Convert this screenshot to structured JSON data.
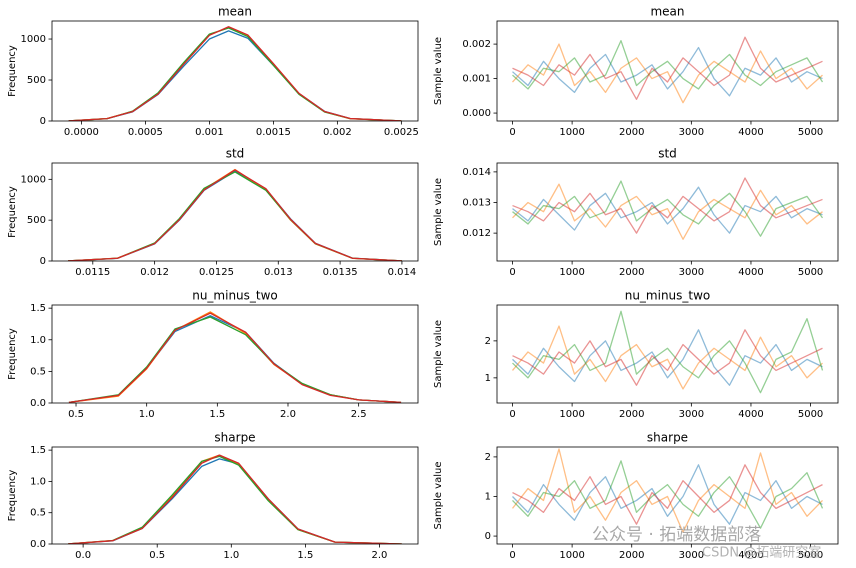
{
  "chart_data": [
    {
      "type": "line",
      "title": "mean",
      "ylabel": "Frequency",
      "opacity": 1,
      "x": [
        -0.0001,
        0.0002,
        0.0004,
        0.0006,
        0.0008,
        0.001,
        0.00115,
        0.0013,
        0.0015,
        0.0017,
        0.0019,
        0.0021,
        0.0025
      ],
      "series": [
        {
          "color": "#1f77b4",
          "values": [
            2,
            29,
            112,
            325,
            670,
            1000,
            1100,
            1010,
            680,
            335,
            118,
            30,
            1
          ]
        },
        {
          "color": "#ff7f0e",
          "values": [
            2,
            30,
            118,
            335,
            700,
            1050,
            1140,
            1045,
            690,
            330,
            112,
            28,
            1
          ]
        },
        {
          "color": "#2ca02c",
          "values": [
            2,
            28,
            120,
            345,
            715,
            1060,
            1135,
            1030,
            680,
            325,
            110,
            29,
            1
          ]
        },
        {
          "color": "#d62728",
          "values": [
            2,
            29,
            115,
            330,
            695,
            1045,
            1150,
            1050,
            700,
            338,
            116,
            30,
            1
          ]
        }
      ],
      "xlim": [
        -0.00023,
        0.00263
      ],
      "ylim": [
        0,
        1220
      ],
      "xticks": [
        {
          "value": 0,
          "label": "0.0000"
        },
        0.0005,
        0.001,
        0.0015,
        0.002,
        0.0025
      ],
      "yticks": [
        0,
        500,
        1000
      ]
    },
    {
      "type": "line",
      "title": "mean",
      "ylabel": "Sample value",
      "opacity": 0.5,
      "x": [
        0,
        260,
        520,
        780,
        1040,
        1300,
        1560,
        1820,
        2080,
        2340,
        2600,
        2860,
        3120,
        3380,
        3640,
        3900,
        4160,
        4420,
        4680,
        4940,
        5200
      ],
      "series": [
        {
          "color": "#1f77b4",
          "values": [
            0.0012,
            0.0008,
            0.0015,
            0.001,
            0.0006,
            0.0013,
            0.0017,
            0.0009,
            0.0011,
            0.0014,
            0.0007,
            0.0012,
            0.0019,
            0.001,
            0.0005,
            0.0013,
            0.0011,
            0.0016,
            0.0009,
            0.0012,
            0.001
          ]
        },
        {
          "color": "#ff7f0e",
          "values": [
            0.0009,
            0.0014,
            0.0011,
            0.002,
            0.0008,
            0.0012,
            0.0006,
            0.0013,
            0.0016,
            0.001,
            0.0012,
            0.0003,
            0.0011,
            0.0015,
            0.0012,
            0.0009,
            0.0018,
            0.001,
            0.0013,
            0.0007,
            0.0011
          ]
        },
        {
          "color": "#2ca02c",
          "values": [
            0.0011,
            0.0007,
            0.0013,
            0.0012,
            0.0016,
            0.0009,
            0.0011,
            0.0021,
            0.0008,
            0.0012,
            0.0015,
            0.001,
            0.0007,
            0.0013,
            0.0017,
            0.0011,
            0.0008,
            0.0012,
            0.0014,
            0.0016,
            0.0009
          ]
        },
        {
          "color": "#d62728",
          "values": [
            0.0013,
            0.0011,
            0.0008,
            0.0014,
            0.0011,
            0.0017,
            0.001,
            0.0012,
            0.0004,
            0.0013,
            0.0009,
            0.0016,
            0.0012,
            0.0008,
            0.0011,
            0.0022,
            0.0013,
            0.0009,
            0.0011,
            0.0013,
            0.0015
          ]
        }
      ],
      "xlim": [
        -260,
        5460
      ],
      "ylim": [
        -0.00023,
        0.00267
      ],
      "xticks": [
        0,
        1000,
        2000,
        3000,
        4000,
        5000
      ],
      "yticks": [
        {
          "value": 0,
          "label": "0.000"
        },
        {
          "value": 0.001,
          "label": "0.001"
        },
        {
          "value": 0.002,
          "label": "0.002"
        }
      ]
    },
    {
      "type": "line",
      "title": "std",
      "ylabel": "Frequency",
      "opacity": 1,
      "x": [
        0.0113,
        0.0117,
        0.012,
        0.0122,
        0.0124,
        0.01265,
        0.0129,
        0.0131,
        0.0133,
        0.0136,
        0.014
      ],
      "series": [
        {
          "color": "#1f77b4",
          "values": [
            1,
            33,
            210,
            500,
            865,
            1100,
            880,
            515,
            218,
            35,
            1
          ]
        },
        {
          "color": "#ff7f0e",
          "values": [
            1,
            35,
            218,
            515,
            880,
            1120,
            870,
            500,
            210,
            33,
            1
          ]
        },
        {
          "color": "#2ca02c",
          "values": [
            1,
            34,
            220,
            520,
            890,
            1090,
            865,
            505,
            212,
            34,
            1
          ]
        },
        {
          "color": "#d62728",
          "values": [
            1,
            34,
            212,
            505,
            870,
            1115,
            885,
            510,
            216,
            34,
            1
          ]
        }
      ],
      "xlim": [
        0.01117,
        0.01413
      ],
      "ylim": [
        0,
        1200
      ],
      "xticks": [
        0.0115,
        0.012,
        0.0125,
        0.013,
        0.0135,
        0.014
      ],
      "yticks": [
        0,
        500,
        1000
      ]
    },
    {
      "type": "line",
      "title": "std",
      "ylabel": "Sample value",
      "opacity": 0.5,
      "x": [
        0,
        260,
        520,
        780,
        1040,
        1300,
        1560,
        1820,
        2080,
        2340,
        2600,
        2860,
        3120,
        3380,
        3640,
        3900,
        4160,
        4420,
        4680,
        4940,
        5200
      ],
      "series": [
        {
          "color": "#1f77b4",
          "values": [
            0.0128,
            0.0124,
            0.0131,
            0.0126,
            0.0121,
            0.0129,
            0.0133,
            0.0125,
            0.0127,
            0.013,
            0.0123,
            0.0128,
            0.0135,
            0.0126,
            0.012,
            0.0129,
            0.0127,
            0.0132,
            0.0125,
            0.0128,
            0.0126
          ]
        },
        {
          "color": "#ff7f0e",
          "values": [
            0.0125,
            0.013,
            0.0127,
            0.0136,
            0.0124,
            0.0128,
            0.0122,
            0.0129,
            0.0132,
            0.0126,
            0.0128,
            0.0118,
            0.0127,
            0.0131,
            0.0128,
            0.0125,
            0.0134,
            0.0126,
            0.0129,
            0.0123,
            0.0127
          ]
        },
        {
          "color": "#2ca02c",
          "values": [
            0.0127,
            0.0123,
            0.0129,
            0.0128,
            0.0132,
            0.0125,
            0.0127,
            0.0137,
            0.0124,
            0.0128,
            0.0131,
            0.0126,
            0.0123,
            0.0129,
            0.0133,
            0.0127,
            0.0119,
            0.0128,
            0.013,
            0.0132,
            0.0125
          ]
        },
        {
          "color": "#d62728",
          "values": [
            0.0129,
            0.0127,
            0.0124,
            0.013,
            0.0127,
            0.0133,
            0.0126,
            0.0128,
            0.012,
            0.0129,
            0.0125,
            0.0132,
            0.0128,
            0.0124,
            0.0127,
            0.0138,
            0.0129,
            0.0125,
            0.0127,
            0.0129,
            0.0131
          ]
        }
      ],
      "xlim": [
        -260,
        5460
      ],
      "ylim": [
        0.01109,
        0.01429
      ],
      "xticks": [
        0,
        1000,
        2000,
        3000,
        4000,
        5000
      ],
      "yticks": [
        0.012,
        0.013,
        0.014
      ]
    },
    {
      "type": "line",
      "title": "nu_minus_two",
      "ylabel": "Frequency",
      "opacity": 1,
      "x": [
        0.45,
        0.8,
        1.0,
        1.2,
        1.45,
        1.7,
        1.9,
        2.1,
        2.3,
        2.5,
        2.8
      ],
      "series": [
        {
          "color": "#1f77b4",
          "values": [
            0.01,
            0.12,
            0.55,
            1.13,
            1.38,
            1.12,
            0.63,
            0.3,
            0.13,
            0.05,
            0.01
          ]
        },
        {
          "color": "#ff7f0e",
          "values": [
            0.01,
            0.11,
            0.54,
            1.15,
            1.44,
            1.1,
            0.61,
            0.3,
            0.13,
            0.05,
            0.01
          ]
        },
        {
          "color": "#2ca02c",
          "values": [
            0.01,
            0.13,
            0.57,
            1.17,
            1.36,
            1.08,
            0.62,
            0.31,
            0.13,
            0.05,
            0.01
          ]
        },
        {
          "color": "#d62728",
          "values": [
            0.01,
            0.12,
            0.55,
            1.15,
            1.42,
            1.12,
            0.62,
            0.29,
            0.12,
            0.05,
            0.01
          ]
        }
      ],
      "xlim": [
        0.33,
        2.92
      ],
      "ylim": [
        0,
        1.55
      ],
      "xticks": [
        0.5,
        {
          "value": 1,
          "label": "1.0"
        },
        1.5,
        {
          "value": 2,
          "label": "2.0"
        },
        2.5
      ],
      "yticks": [
        {
          "value": 0,
          "label": "0.0"
        },
        0.5,
        {
          "value": 1,
          "label": "1.0"
        },
        1.5
      ]
    },
    {
      "type": "line",
      "title": "nu_minus_two",
      "ylabel": "Sample value",
      "opacity": 0.5,
      "x": [
        0,
        260,
        520,
        780,
        1040,
        1300,
        1560,
        1820,
        2080,
        2340,
        2600,
        2860,
        3120,
        3380,
        3640,
        3900,
        4160,
        4420,
        4680,
        4940,
        5200
      ],
      "series": [
        {
          "color": "#1f77b4",
          "values": [
            1.5,
            1.1,
            1.8,
            1.3,
            0.9,
            1.6,
            2.0,
            1.2,
            1.4,
            1.7,
            1.0,
            1.5,
            2.3,
            1.3,
            0.8,
            1.6,
            1.4,
            1.9,
            1.2,
            1.5,
            1.3
          ]
        },
        {
          "color": "#ff7f0e",
          "values": [
            1.2,
            1.7,
            1.4,
            2.4,
            1.1,
            1.5,
            0.9,
            1.6,
            1.9,
            1.3,
            1.5,
            0.7,
            1.4,
            1.8,
            1.5,
            1.2,
            2.1,
            1.3,
            1.6,
            1.0,
            1.4
          ]
        },
        {
          "color": "#2ca02c",
          "values": [
            1.4,
            1.0,
            1.6,
            1.5,
            1.9,
            1.2,
            1.4,
            2.8,
            1.1,
            1.5,
            1.8,
            1.3,
            1.0,
            1.6,
            2.0,
            1.4,
            0.6,
            1.5,
            1.7,
            2.6,
            1.2
          ]
        },
        {
          "color": "#d62728",
          "values": [
            1.6,
            1.4,
            1.1,
            1.7,
            1.4,
            2.0,
            1.3,
            1.5,
            0.8,
            1.6,
            1.2,
            1.9,
            1.5,
            1.1,
            1.4,
            2.3,
            1.6,
            1.2,
            1.4,
            1.6,
            1.8
          ]
        }
      ],
      "xlim": [
        -260,
        5460
      ],
      "ylim": [
        0.32,
        2.97
      ],
      "xticks": [
        0,
        1000,
        2000,
        3000,
        4000,
        5000
      ],
      "yticks": [
        1,
        2
      ]
    },
    {
      "type": "line",
      "title": "sharpe",
      "ylabel": "Frequency",
      "opacity": 1,
      "x": [
        -0.1,
        0.2,
        0.4,
        0.6,
        0.8,
        0.92,
        1.05,
        1.25,
        1.45,
        1.7,
        2.15
      ],
      "series": [
        {
          "color": "#1f77b4",
          "values": [
            0.002,
            0.05,
            0.25,
            0.72,
            1.24,
            1.36,
            1.28,
            0.72,
            0.24,
            0.03,
            0
          ]
        },
        {
          "color": "#ff7f0e",
          "values": [
            0.002,
            0.055,
            0.26,
            0.76,
            1.32,
            1.42,
            1.27,
            0.7,
            0.23,
            0.03,
            0
          ]
        },
        {
          "color": "#2ca02c",
          "values": [
            0.002,
            0.056,
            0.27,
            0.78,
            1.32,
            1.4,
            1.26,
            0.69,
            0.23,
            0.03,
            0
          ]
        },
        {
          "color": "#d62728",
          "values": [
            0.002,
            0.053,
            0.25,
            0.74,
            1.29,
            1.42,
            1.29,
            0.72,
            0.24,
            0.03,
            0
          ]
        }
      ],
      "xlim": [
        -0.21,
        2.26
      ],
      "ylim": [
        0,
        1.55
      ],
      "xticks": [
        {
          "value": 0,
          "label": "0.0"
        },
        0.5,
        {
          "value": 1,
          "label": "1.0"
        },
        1.5,
        {
          "value": 2,
          "label": "2.0"
        }
      ],
      "yticks": [
        {
          "value": 0,
          "label": "0.0"
        },
        0.5,
        {
          "value": 1,
          "label": "1.0"
        },
        1.5
      ]
    },
    {
      "type": "line",
      "title": "sharpe",
      "ylabel": "Sample value",
      "opacity": 0.5,
      "x": [
        0,
        260,
        520,
        780,
        1040,
        1300,
        1560,
        1820,
        2080,
        2340,
        2600,
        2860,
        3120,
        3380,
        3640,
        3900,
        4160,
        4420,
        4680,
        4940,
        5200
      ],
      "series": [
        {
          "color": "#1f77b4",
          "values": [
            1.0,
            0.6,
            1.3,
            0.8,
            0.4,
            1.1,
            1.5,
            0.7,
            0.9,
            1.2,
            0.5,
            1.0,
            1.8,
            0.8,
            0.3,
            1.1,
            0.9,
            1.4,
            0.7,
            1.0,
            0.8
          ]
        },
        {
          "color": "#ff7f0e",
          "values": [
            0.7,
            1.2,
            0.9,
            2.2,
            0.6,
            1.0,
            0.4,
            1.1,
            1.4,
            0.8,
            1.0,
            0.1,
            0.9,
            1.3,
            1.0,
            0.7,
            2.1,
            0.8,
            1.1,
            0.5,
            0.9
          ]
        },
        {
          "color": "#2ca02c",
          "values": [
            0.9,
            0.5,
            1.1,
            1.0,
            1.4,
            0.7,
            0.9,
            1.9,
            0.6,
            1.0,
            1.3,
            0.8,
            0.5,
            1.1,
            1.5,
            0.9,
            0.2,
            1.0,
            1.2,
            1.6,
            0.7
          ]
        },
        {
          "color": "#d62728",
          "values": [
            1.1,
            0.9,
            0.6,
            1.2,
            0.9,
            1.5,
            0.8,
            1.0,
            0.3,
            1.1,
            0.7,
            1.4,
            1.0,
            0.6,
            0.9,
            1.8,
            1.1,
            0.7,
            0.9,
            1.1,
            1.3
          ]
        }
      ],
      "xlim": [
        -260,
        5460
      ],
      "ylim": [
        -0.2,
        2.25
      ],
      "xticks": [
        0,
        1000,
        2000,
        3000,
        4000,
        5000
      ],
      "yticks": [
        0,
        1,
        2
      ]
    }
  ],
  "watermark": {
    "line1": "公众号 · 拓端数据部落",
    "line2": "CSDN @拓端研究室"
  }
}
